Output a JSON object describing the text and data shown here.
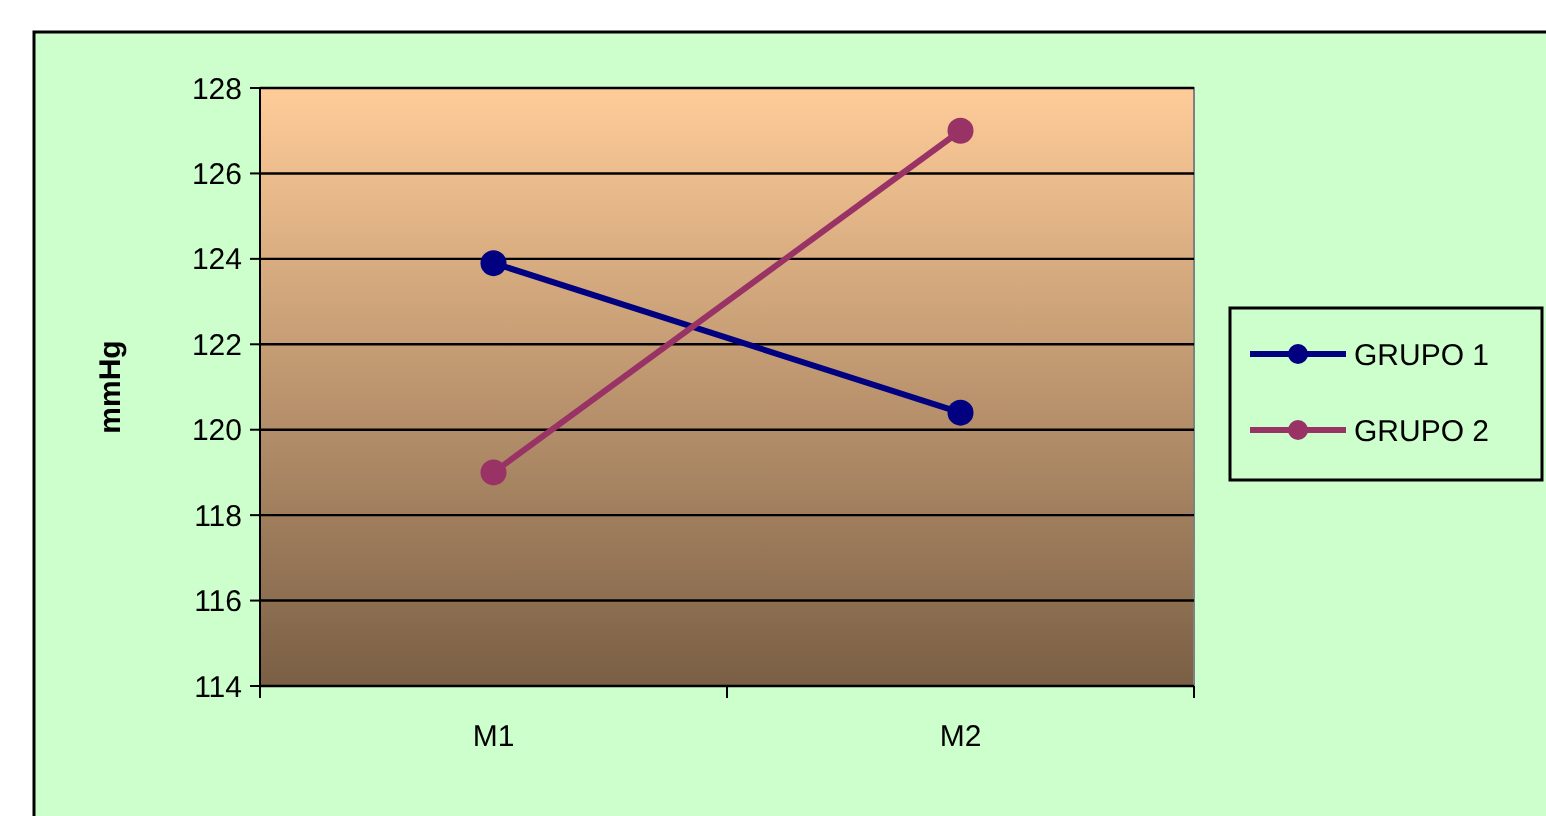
{
  "chart_data": {
    "type": "line",
    "ylabel": "mmHg",
    "categories": [
      "M1",
      "M2"
    ],
    "series": [
      {
        "name": "GRUPO 1",
        "color": "#000080",
        "values": [
          123.9,
          120.4
        ]
      },
      {
        "name": "GRUPO 2",
        "color": "#993366",
        "values": [
          119.0,
          127.0
        ]
      }
    ],
    "ylim": [
      114,
      128
    ],
    "yticks": [
      114,
      116,
      118,
      120,
      122,
      124,
      126,
      128
    ],
    "grid": "y",
    "legend": "right",
    "marker": "circle"
  }
}
